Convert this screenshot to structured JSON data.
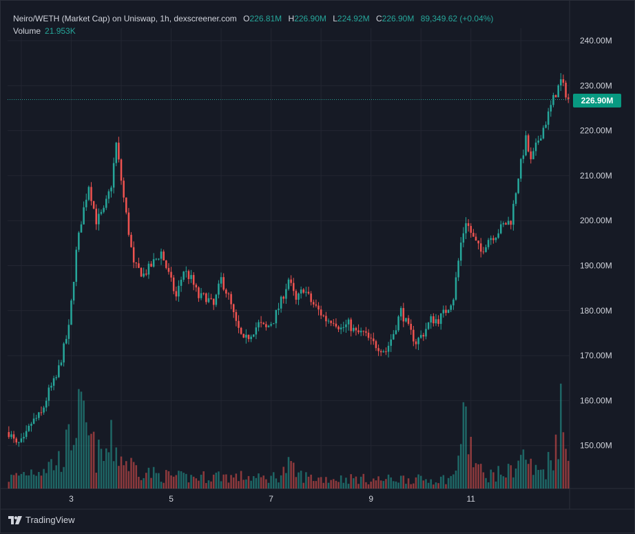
{
  "legend": {
    "title": "Neiro/WETH (Market Cap) on Uniswap, 1h, dexscreener.com",
    "open_label": "O",
    "open": "226.81M",
    "high_label": "H",
    "high": "226.90M",
    "low_label": "L",
    "low": "224.92M",
    "close_label": "C",
    "close": "226.90M",
    "change": "89,349.62 (+0.04%)",
    "volume_label": "Volume",
    "volume": "21.953K"
  },
  "last_price_label": "226.90M",
  "footer": {
    "brand": "TradingView",
    "logo_icon": "tradingview-logo-icon"
  },
  "colors": {
    "background": "#161a25",
    "grid": "#232632",
    "up": "#26a69a",
    "down": "#ef5350",
    "text": "#d1d4dc",
    "last_price_bg": "#089981"
  },
  "chart_data": {
    "type": "candlestick",
    "title": "Neiro/WETH (Market Cap) on Uniswap, 1h, dexscreener.com",
    "xlabel": "",
    "ylabel": "",
    "x_ticks": [
      "3",
      "5",
      "7",
      "9",
      "11"
    ],
    "y_ticks": [
      "150.00M",
      "160.00M",
      "170.00M",
      "180.00M",
      "190.00M",
      "200.00M",
      "210.00M",
      "220.00M",
      "230.00M",
      "240.00M"
    ],
    "y_units": "M",
    "ylim": [
      140,
      242
    ],
    "last_price": 226.9,
    "grid": true,
    "price_anchors": [
      [
        0,
        153
      ],
      [
        3,
        150
      ],
      [
        6,
        151
      ],
      [
        9,
        155
      ],
      [
        13,
        157
      ],
      [
        16,
        162
      ],
      [
        19,
        165
      ],
      [
        24,
        176
      ],
      [
        27,
        193
      ],
      [
        29,
        200
      ],
      [
        32,
        208
      ],
      [
        35,
        200
      ],
      [
        38,
        202
      ],
      [
        41,
        208
      ],
      [
        43,
        217
      ],
      [
        46,
        205
      ],
      [
        50,
        190
      ],
      [
        54,
        188
      ],
      [
        57,
        190
      ],
      [
        61,
        193
      ],
      [
        64,
        188
      ],
      [
        67,
        183
      ],
      [
        70,
        189
      ],
      [
        73,
        187
      ],
      [
        76,
        183
      ],
      [
        79,
        183
      ],
      [
        82,
        181
      ],
      [
        85,
        187
      ],
      [
        88,
        183
      ],
      [
        91,
        177
      ],
      [
        94,
        173
      ],
      [
        97,
        175
      ],
      [
        100,
        177
      ],
      [
        103,
        176
      ],
      [
        106,
        178
      ],
      [
        109,
        182
      ],
      [
        112,
        187
      ],
      [
        115,
        182
      ],
      [
        118,
        185
      ],
      [
        121,
        182
      ],
      [
        124,
        180
      ],
      [
        127,
        178
      ],
      [
        130,
        178
      ],
      [
        133,
        176
      ],
      [
        136,
        177
      ],
      [
        139,
        175
      ],
      [
        142,
        175
      ],
      [
        145,
        173
      ],
      [
        148,
        172
      ],
      [
        151,
        171
      ],
      [
        154,
        175
      ],
      [
        157,
        180
      ],
      [
        160,
        176
      ],
      [
        163,
        173
      ],
      [
        166,
        175
      ],
      [
        169,
        178
      ],
      [
        172,
        178
      ],
      [
        175,
        180
      ],
      [
        178,
        183
      ],
      [
        181,
        195
      ],
      [
        183,
        200
      ],
      [
        186,
        196
      ],
      [
        189,
        193
      ],
      [
        192,
        196
      ],
      [
        195,
        197
      ],
      [
        198,
        199
      ],
      [
        201,
        200
      ],
      [
        204,
        210
      ],
      [
        207,
        218
      ],
      [
        209,
        213
      ],
      [
        212,
        218
      ],
      [
        215,
        222
      ],
      [
        218,
        227
      ],
      [
        221,
        231
      ],
      [
        224,
        227
      ]
    ],
    "volume_anchors": [
      [
        0,
        0.9
      ],
      [
        5,
        1.3
      ],
      [
        10,
        1.7
      ],
      [
        15,
        2.0
      ],
      [
        20,
        2.5
      ],
      [
        24,
        4.0
      ],
      [
        27,
        6.5
      ],
      [
        29,
        6.0
      ],
      [
        32,
        4.5
      ],
      [
        35,
        3.0
      ],
      [
        38,
        2.8
      ],
      [
        41,
        4.0
      ],
      [
        43,
        3.5
      ],
      [
        46,
        2.5
      ],
      [
        50,
        2.0
      ],
      [
        55,
        1.5
      ],
      [
        60,
        1.2
      ],
      [
        65,
        1.1
      ],
      [
        70,
        1.0
      ],
      [
        75,
        1.0
      ],
      [
        80,
        1.1
      ],
      [
        85,
        1.2
      ],
      [
        90,
        1.0
      ],
      [
        95,
        1.1
      ],
      [
        100,
        0.9
      ],
      [
        105,
        1.0
      ],
      [
        109,
        1.3
      ],
      [
        112,
        2.0
      ],
      [
        115,
        1.3
      ],
      [
        120,
        1.0
      ],
      [
        125,
        0.9
      ],
      [
        130,
        0.9
      ],
      [
        135,
        0.9
      ],
      [
        140,
        0.9
      ],
      [
        145,
        0.8
      ],
      [
        150,
        0.8
      ],
      [
        155,
        0.9
      ],
      [
        160,
        0.9
      ],
      [
        165,
        0.8
      ],
      [
        170,
        0.8
      ],
      [
        175,
        0.9
      ],
      [
        178,
        1.0
      ],
      [
        181,
        4.5
      ],
      [
        183,
        6.0
      ],
      [
        186,
        2.5
      ],
      [
        190,
        1.2
      ],
      [
        195,
        1.3
      ],
      [
        200,
        1.5
      ],
      [
        204,
        2.5
      ],
      [
        207,
        3.0
      ],
      [
        210,
        1.5
      ],
      [
        215,
        1.8
      ],
      [
        218,
        3.5
      ],
      [
        220,
        5.5
      ],
      [
        221,
        7.0
      ],
      [
        222,
        4.5
      ],
      [
        224,
        2.5
      ]
    ],
    "volume_max_label": "21.953K",
    "candle_count": 225
  }
}
